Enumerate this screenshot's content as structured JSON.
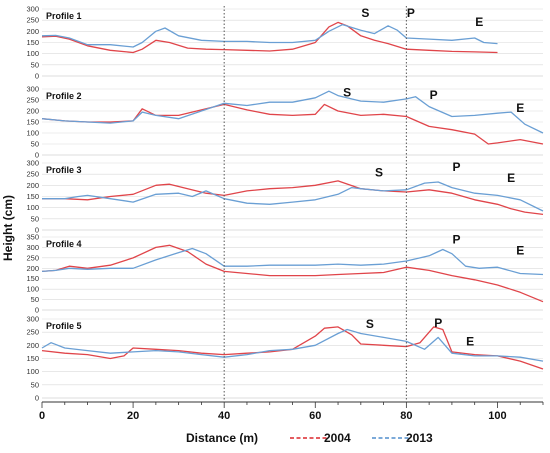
{
  "chart_data": {
    "type": "line",
    "xlabel": "Distance (m)",
    "ylabel": "Height (cm)",
    "xlim": [
      0,
      110
    ],
    "xticks": [
      0,
      20,
      40,
      60,
      80,
      100
    ],
    "reference_lines_x": [
      40,
      80
    ],
    "legend": {
      "position": "bottom-right",
      "entries": [
        {
          "name": "2004",
          "color": "#e0454a",
          "style": "dashed"
        },
        {
          "name": "2013",
          "color": "#6a9fd4",
          "style": "dashed"
        }
      ]
    },
    "colors": {
      "2004": "#e0454a",
      "2013": "#6a9fd4",
      "grid": "#d9d9d9",
      "refline": "#555555"
    },
    "panels": [
      {
        "title": "Profile 1",
        "ylim": [
          0,
          300
        ],
        "yticks": [
          0,
          50,
          100,
          150,
          200,
          250,
          300
        ],
        "annotations": [
          {
            "text": "S",
            "x": 71,
            "y": 265
          },
          {
            "text": "P",
            "x": 81,
            "y": 265
          },
          {
            "text": "E",
            "x": 96,
            "y": 225
          }
        ],
        "series": [
          {
            "name": "2004",
            "x": [
              0,
              3,
              6,
              10,
              15,
              20,
              22,
              25,
              28,
              32,
              36,
              40,
              45,
              50,
              55,
              60,
              63,
              65,
              67,
              70,
              73,
              76,
              80,
              85,
              90,
              95,
              100
            ],
            "y": [
              175,
              178,
              165,
              135,
              115,
              105,
              120,
              160,
              150,
              125,
              120,
              118,
              115,
              112,
              120,
              150,
              220,
              240,
              225,
              180,
              160,
              145,
              120,
              115,
              110,
              108,
              105
            ]
          },
          {
            "name": "2013",
            "x": [
              0,
              3,
              6,
              10,
              15,
              20,
              22,
              25,
              27,
              30,
              35,
              40,
              45,
              50,
              55,
              60,
              63,
              66,
              70,
              73,
              76,
              78,
              80,
              85,
              90,
              95,
              97,
              100
            ],
            "y": [
              180,
              182,
              170,
              140,
              140,
              130,
              150,
              200,
              215,
              180,
              160,
              155,
              155,
              150,
              150,
              160,
              200,
              230,
              205,
              190,
              225,
              205,
              170,
              165,
              160,
              170,
              150,
              145
            ]
          }
        ]
      },
      {
        "title": "Profile 2",
        "ylim": [
          0,
          300
        ],
        "yticks": [
          0,
          50,
          100,
          150,
          200,
          250,
          300
        ],
        "annotations": [
          {
            "text": "S",
            "x": 67,
            "y": 265
          },
          {
            "text": "P",
            "x": 86,
            "y": 255
          },
          {
            "text": "E",
            "x": 105,
            "y": 195
          }
        ],
        "series": [
          {
            "name": "2004",
            "x": [
              0,
              5,
              10,
              15,
              20,
              22,
              25,
              30,
              35,
              40,
              45,
              50,
              55,
              60,
              62,
              65,
              70,
              75,
              80,
              85,
              90,
              95,
              98,
              100,
              105,
              110
            ],
            "y": [
              165,
              155,
              150,
              150,
              155,
              210,
              180,
              180,
              205,
              230,
              205,
              185,
              180,
              185,
              230,
              200,
              180,
              185,
              175,
              130,
              115,
              95,
              50,
              55,
              70,
              50
            ]
          },
          {
            "name": "2013",
            "x": [
              0,
              5,
              10,
              15,
              20,
              22,
              25,
              30,
              35,
              40,
              45,
              50,
              55,
              60,
              63,
              65,
              70,
              75,
              80,
              82,
              85,
              90,
              95,
              100,
              103,
              106,
              110
            ],
            "y": [
              165,
              155,
              150,
              145,
              155,
              195,
              180,
              165,
              200,
              235,
              225,
              240,
              240,
              260,
              290,
              270,
              245,
              240,
              255,
              265,
              220,
              175,
              180,
              190,
              195,
              140,
              100
            ]
          }
        ]
      },
      {
        "title": "Profile 3",
        "ylim": [
          0,
          300
        ],
        "yticks": [
          0,
          50,
          100,
          150,
          200,
          250,
          300
        ],
        "annotations": [
          {
            "text": "S",
            "x": 74,
            "y": 240
          },
          {
            "text": "P",
            "x": 91,
            "y": 265
          },
          {
            "text": "E",
            "x": 103,
            "y": 215
          }
        ],
        "series": [
          {
            "name": "2004",
            "x": [
              0,
              5,
              10,
              15,
              20,
              25,
              28,
              32,
              36,
              40,
              45,
              50,
              55,
              60,
              65,
              70,
              75,
              80,
              85,
              90,
              95,
              100,
              103,
              106,
              110
            ],
            "y": [
              140,
              140,
              135,
              150,
              160,
              200,
              205,
              185,
              165,
              155,
              175,
              185,
              190,
              200,
              220,
              185,
              175,
              170,
              180,
              165,
              135,
              115,
              95,
              80,
              70
            ]
          },
          {
            "name": "2013",
            "x": [
              0,
              5,
              8,
              10,
              15,
              20,
              25,
              30,
              33,
              36,
              40,
              45,
              50,
              55,
              60,
              65,
              68,
              70,
              75,
              80,
              84,
              87,
              90,
              95,
              100,
              105,
              110
            ],
            "y": [
              140,
              140,
              150,
              155,
              140,
              125,
              160,
              165,
              150,
              175,
              140,
              120,
              115,
              125,
              135,
              160,
              190,
              185,
              175,
              180,
              210,
              215,
              190,
              165,
              155,
              135,
              85
            ]
          }
        ]
      },
      {
        "title": "Profile 4",
        "ylim": [
          0,
          350
        ],
        "yticks": [
          0,
          50,
          100,
          150,
          200,
          250,
          300,
          350
        ],
        "annotations": [
          {
            "text": "P",
            "x": 91,
            "y": 320
          },
          {
            "text": "E",
            "x": 105,
            "y": 265
          }
        ],
        "series": [
          {
            "name": "2004",
            "x": [
              0,
              3,
              6,
              10,
              15,
              20,
              25,
              28,
              32,
              36,
              40,
              45,
              50,
              55,
              60,
              65,
              70,
              75,
              80,
              85,
              90,
              95,
              100,
              105,
              110
            ],
            "y": [
              185,
              190,
              210,
              200,
              215,
              250,
              300,
              310,
              280,
              220,
              185,
              175,
              165,
              165,
              165,
              170,
              175,
              180,
              205,
              190,
              165,
              145,
              120,
              85,
              40
            ]
          },
          {
            "name": "2013",
            "x": [
              0,
              3,
              6,
              10,
              15,
              20,
              25,
              30,
              33,
              36,
              40,
              45,
              50,
              55,
              60,
              65,
              70,
              75,
              80,
              85,
              88,
              90,
              93,
              96,
              100,
              105,
              110
            ],
            "y": [
              185,
              190,
              200,
              195,
              200,
              200,
              240,
              275,
              295,
              270,
              210,
              210,
              215,
              215,
              215,
              220,
              215,
              220,
              235,
              260,
              290,
              270,
              210,
              200,
              205,
              175,
              170
            ]
          }
        ]
      },
      {
        "title": "Profile 5",
        "ylim": [
          0,
          300
        ],
        "yticks": [
          0,
          50,
          100,
          150,
          200,
          250,
          300
        ],
        "annotations": [
          {
            "text": "S",
            "x": 72,
            "y": 265
          },
          {
            "text": "P",
            "x": 87,
            "y": 270
          },
          {
            "text": "E",
            "x": 94,
            "y": 200
          }
        ],
        "series": [
          {
            "name": "2004",
            "x": [
              0,
              5,
              10,
              15,
              18,
              20,
              25,
              30,
              35,
              40,
              45,
              50,
              55,
              60,
              62,
              65,
              68,
              70,
              75,
              80,
              83,
              86,
              88,
              90,
              95,
              100,
              105,
              110
            ],
            "y": [
              180,
              170,
              165,
              150,
              160,
              190,
              185,
              180,
              170,
              165,
              170,
              175,
              185,
              235,
              265,
              270,
              240,
              205,
              200,
              195,
              210,
              270,
              260,
              175,
              165,
              160,
              140,
              110
            ]
          },
          {
            "name": "2013",
            "x": [
              0,
              2,
              5,
              10,
              15,
              20,
              25,
              30,
              35,
              40,
              45,
              50,
              55,
              60,
              65,
              67,
              70,
              75,
              80,
              84,
              87,
              90,
              95,
              100,
              105,
              110
            ],
            "y": [
              190,
              210,
              190,
              180,
              170,
              175,
              180,
              175,
              165,
              155,
              165,
              180,
              185,
              200,
              245,
              260,
              245,
              230,
              215,
              185,
              230,
              170,
              160,
              160,
              155,
              140
            ]
          }
        ]
      }
    ]
  }
}
